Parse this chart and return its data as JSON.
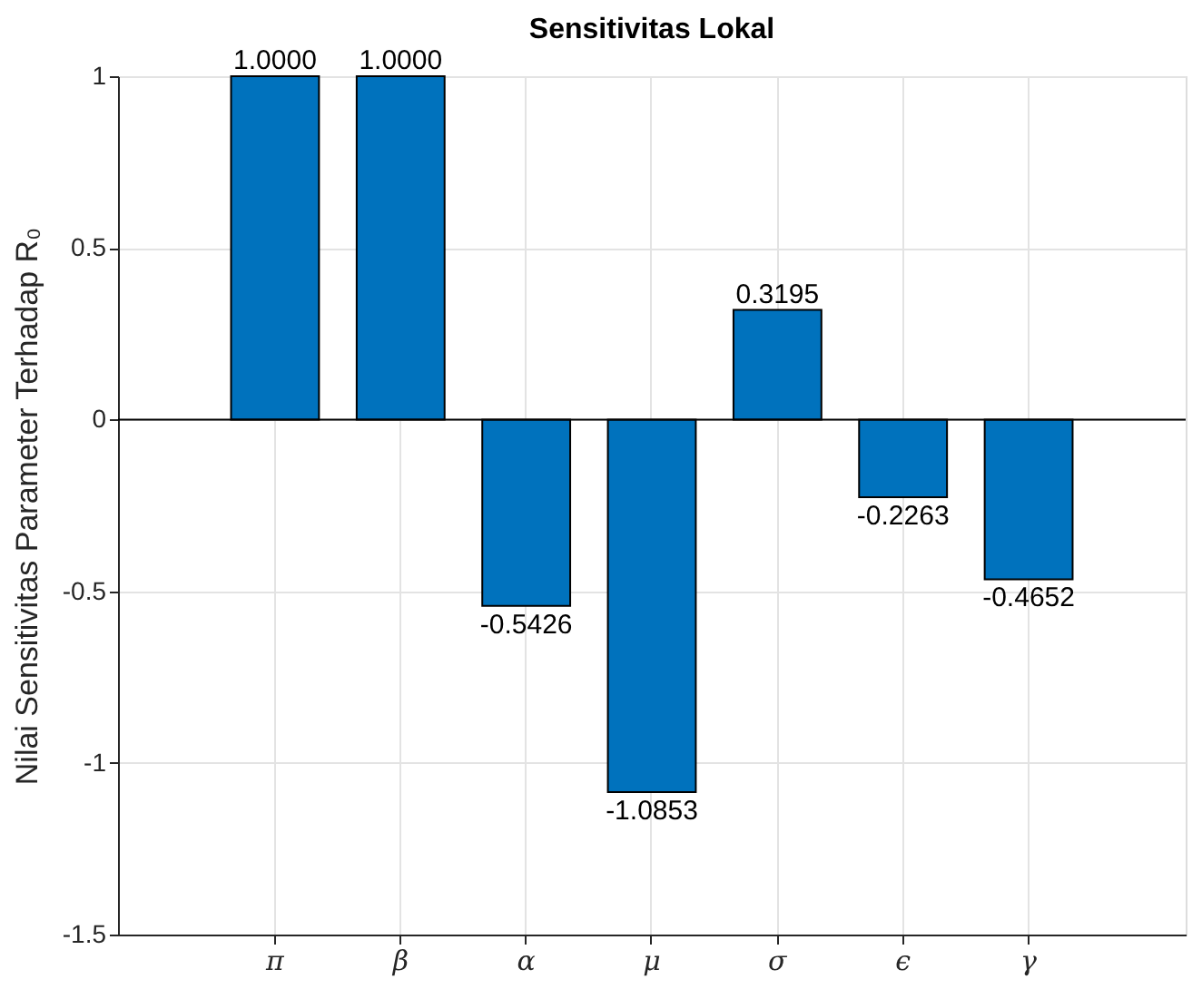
{
  "chart_data": {
    "type": "bar",
    "title": "Sensitivitas Lokal",
    "ylabel": "Nilai Sensitivitas Parameter Terhadap R₀",
    "categories": [
      "π",
      "β",
      "α",
      "μ",
      "σ",
      "ϵ",
      "γ"
    ],
    "values": [
      1.0,
      1.0,
      -0.5426,
      -1.0853,
      0.3195,
      -0.2263,
      -0.4652
    ],
    "value_labels": [
      "1.0000",
      "1.0000",
      "-0.5426",
      "-1.0853",
      "0.3195",
      "-0.2263",
      "-0.4652"
    ],
    "color": "#0072bd",
    "ylim": [
      -1.5,
      1
    ],
    "yticks": [
      {
        "value": -1.5,
        "label": "-1.5"
      },
      {
        "value": -1,
        "label": "-1"
      },
      {
        "value": -0.5,
        "label": "-0.5"
      },
      {
        "value": 0,
        "label": "0"
      },
      {
        "value": 0.5,
        "label": "0.5"
      },
      {
        "value": 1,
        "label": "1"
      }
    ],
    "ref_lines": [
      {
        "axis": "y",
        "value": 0,
        "color": "#000000"
      }
    ],
    "grid": true
  }
}
